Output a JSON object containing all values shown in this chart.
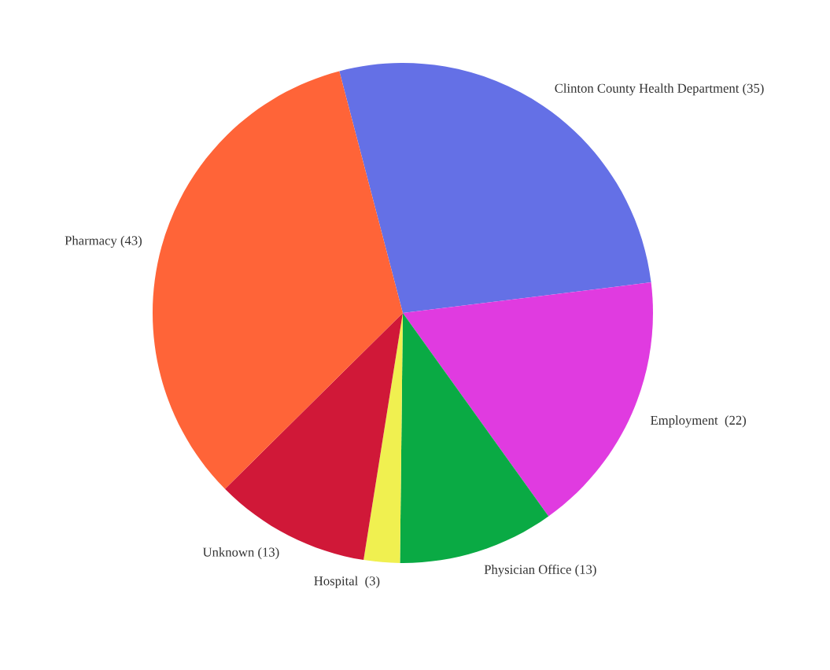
{
  "chart_data": {
    "type": "pie",
    "categories": [
      "Clinton County Health Department (35)",
      "Employment  (22)",
      "Physician Office (13)",
      "Hospital  (3)",
      "Unknown (13)",
      "Pharmacy (43)"
    ],
    "values": [
      35,
      22,
      13,
      3,
      13,
      43
    ],
    "colors": [
      "#6470e6",
      "#e03be0",
      "#0aaa44",
      "#f0f050",
      "#d01838",
      "#ff6438"
    ]
  }
}
